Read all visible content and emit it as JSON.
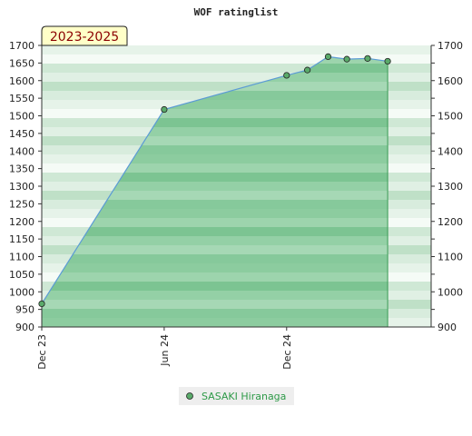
{
  "chart_data": {
    "type": "area",
    "title": "WOF ratinglist",
    "badge": "2023-2025",
    "ylim": [
      900,
      1700
    ],
    "yticks": [
      900,
      950,
      1000,
      1050,
      1100,
      1150,
      1200,
      1250,
      1300,
      1350,
      1400,
      1450,
      1500,
      1550,
      1600,
      1650,
      1700
    ],
    "yticks_right": [
      900,
      1000,
      1100,
      1200,
      1300,
      1400,
      1500,
      1600,
      1700
    ],
    "xlim": [
      "2023-12-01",
      "2025-07-05"
    ],
    "xticks": [
      {
        "date": "2023-12-01",
        "label": "Dec 23"
      },
      {
        "date": "2024-06-01",
        "label": "Jun 24"
      },
      {
        "date": "2024-12-01",
        "label": "Dec 24"
      }
    ],
    "series": [
      {
        "name": "SASAKI Hiranaga",
        "color": "#2e9a48",
        "line_color": "#5b9bd5",
        "points": [
          {
            "x": "2023-12-01",
            "y": 966
          },
          {
            "x": "2024-06-01",
            "y": 1518
          },
          {
            "x": "2024-12-01",
            "y": 1615
          },
          {
            "x": "2025-01-01",
            "y": 1630
          },
          {
            "x": "2025-02-01",
            "y": 1668
          },
          {
            "x": "2025-03-01",
            "y": 1661
          },
          {
            "x": "2025-04-01",
            "y": 1663
          },
          {
            "x": "2025-05-01",
            "y": 1655
          }
        ]
      }
    ],
    "grid": false,
    "legend": "bottom-center"
  }
}
